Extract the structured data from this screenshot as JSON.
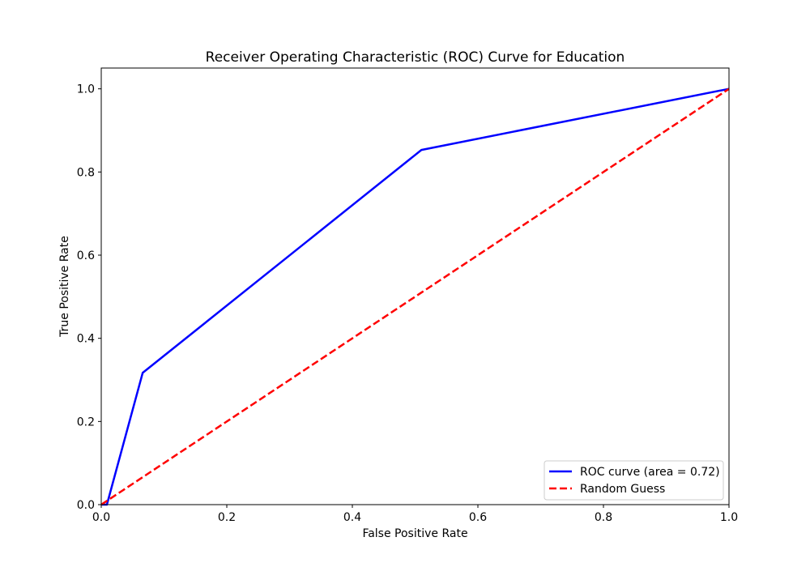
{
  "chart_data": {
    "type": "line",
    "title": "Receiver Operating Characteristic (ROC) Curve for Education",
    "xlabel": "False Positive Rate",
    "ylabel": "True Positive Rate",
    "xlim": [
      0.0,
      1.0
    ],
    "ylim": [
      0.0,
      1.05
    ],
    "xticks": [
      0.0,
      0.2,
      0.4,
      0.6,
      0.8,
      1.0
    ],
    "xtick_labels": [
      "0.0",
      "0.2",
      "0.4",
      "0.6",
      "0.8",
      "1.0"
    ],
    "yticks": [
      0.0,
      0.2,
      0.4,
      0.6,
      0.8,
      1.0
    ],
    "ytick_labels": [
      "0.0",
      "0.2",
      "0.4",
      "0.6",
      "0.8",
      "1.0"
    ],
    "grid": false,
    "legend_position": "lower-right",
    "series": [
      {
        "name": "ROC curve (area = 0.72)",
        "color": "#0000ff",
        "style": "solid",
        "x": [
          0.0,
          0.009,
          0.066,
          0.51,
          1.0
        ],
        "y": [
          0.0,
          0.0,
          0.317,
          0.853,
          1.0
        ]
      },
      {
        "name": "Random Guess",
        "color": "#ff0000",
        "style": "dashed",
        "x": [
          0.0,
          1.0
        ],
        "y": [
          0.0,
          1.0
        ]
      }
    ]
  }
}
